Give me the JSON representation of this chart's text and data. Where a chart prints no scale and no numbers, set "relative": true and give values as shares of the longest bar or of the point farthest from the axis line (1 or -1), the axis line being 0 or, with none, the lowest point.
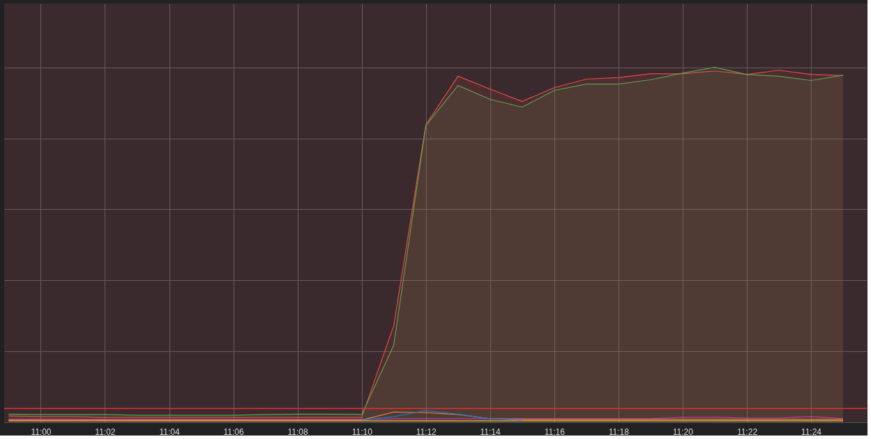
{
  "chart_data": {
    "type": "line",
    "relative": true,
    "grid": true,
    "x": [
      10.9833,
      11.0,
      11.0167,
      11.0333,
      11.05,
      11.0667,
      11.0833,
      11.1,
      11.1167,
      11.1333,
      11.15,
      11.1667,
      11.1833,
      11.2,
      11.2167,
      11.2333,
      11.25,
      11.2667,
      11.2833,
      11.3,
      11.3167,
      11.3333,
      11.35,
      11.3667,
      11.3833,
      11.4,
      11.4167
    ],
    "xlim": [
      10.981,
      11.429
    ],
    "xticks": [
      {
        "value": 11.0,
        "label": "11:00"
      },
      {
        "value": 11.0333,
        "label": "11:02"
      },
      {
        "value": 11.0667,
        "label": "11:04"
      },
      {
        "value": 11.1,
        "label": "11:06"
      },
      {
        "value": 11.1333,
        "label": "11:08"
      },
      {
        "value": 11.1667,
        "label": "11:10"
      },
      {
        "value": 11.2,
        "label": "11:12"
      },
      {
        "value": 11.2333,
        "label": "11:14"
      },
      {
        "value": 11.2667,
        "label": "11:16"
      },
      {
        "value": 11.3,
        "label": "11:18"
      },
      {
        "value": 11.3333,
        "label": "11:20"
      },
      {
        "value": 11.3667,
        "label": "11:22"
      },
      {
        "value": 11.4,
        "label": "11:24"
      }
    ],
    "series": [
      {
        "type": "area",
        "color": "#e24d42",
        "values": [
          0.018,
          0.016,
          0.016,
          0.014,
          0.014,
          0.014,
          0.014,
          0.014,
          0.014,
          0.014,
          0.014,
          0.014,
          0.272,
          0.838,
          0.975,
          0.939,
          0.904,
          0.943,
          0.967,
          0.971,
          0.982,
          0.982,
          0.99,
          0.98,
          0.992,
          0.98,
          0.977
        ]
      },
      {
        "type": "area",
        "color": "#629e51",
        "values": [
          0.023,
          0.022,
          0.022,
          0.022,
          0.02,
          0.02,
          0.02,
          0.02,
          0.022,
          0.023,
          0.023,
          0.022,
          0.217,
          0.836,
          0.949,
          0.91,
          0.888,
          0.935,
          0.953,
          0.953,
          0.965,
          0.984,
          1.0,
          0.98,
          0.975,
          0.963,
          0.978
        ]
      },
      {
        "color": "#1f78c1",
        "values": [
          null,
          null,
          null,
          null,
          null,
          null,
          null,
          null,
          null,
          null,
          null,
          0.006,
          0.016,
          0.033,
          0.023,
          0.01,
          0.006,
          null,
          null,
          null,
          null,
          null,
          null,
          null,
          null,
          null,
          null
        ]
      },
      {
        "color": "#ef843c",
        "values": [
          0.006,
          0.006,
          0.006,
          0.006,
          0.006,
          0.006,
          0.006,
          0.006,
          0.006,
          0.006,
          0.006,
          0.006,
          0.029,
          0.027,
          0.022,
          0.01,
          0.008,
          0.008,
          0.008,
          0.008,
          0.008,
          0.008,
          0.008,
          0.008,
          0.008,
          0.008,
          0.008
        ]
      },
      {
        "color": "#ba43a9",
        "values": [
          0.008,
          0.008,
          0.008,
          0.008,
          0.008,
          0.008,
          0.008,
          0.008,
          0.008,
          0.008,
          0.008,
          0.008,
          0.01,
          0.01,
          0.01,
          0.01,
          0.01,
          0.01,
          0.01,
          0.01,
          0.01,
          0.014,
          0.014,
          0.012,
          0.012,
          0.016,
          0.01
        ]
      },
      {
        "color": "#eab839",
        "values": [
          0.004,
          0.004,
          0.004,
          0.004,
          0.004,
          0.004,
          0.004,
          0.004,
          0.004,
          0.004,
          0.004,
          0.004,
          0.004,
          0.004,
          0.004,
          0.004,
          0.004,
          0.004,
          0.004,
          0.004,
          0.004,
          0.004,
          0.004,
          0.004,
          0.004,
          0.004,
          0.004
        ]
      }
    ],
    "ref_lines": [
      {
        "axis": "y",
        "value": 0.039,
        "color": "#e02f2f"
      }
    ]
  }
}
